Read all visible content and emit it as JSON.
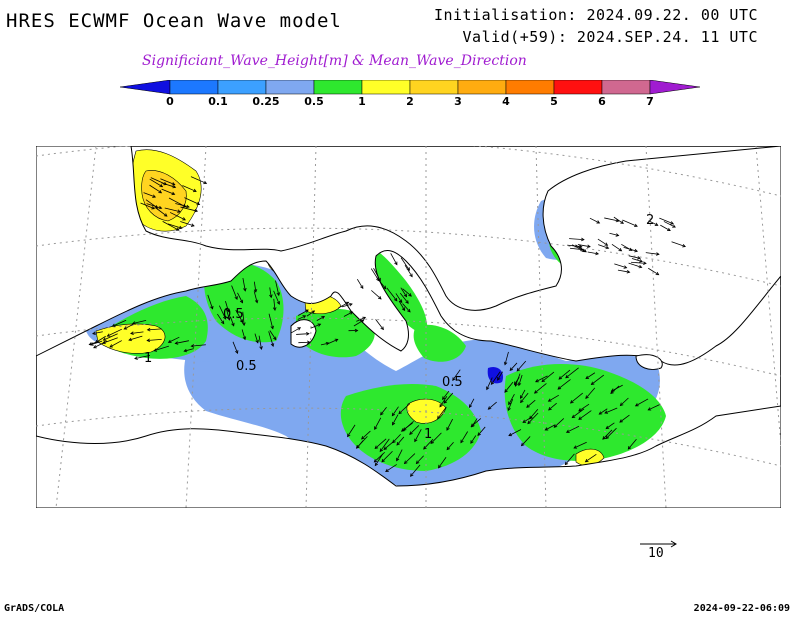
{
  "header": {
    "title": "HRES ECWMF Ocean Wave model",
    "init": "Initialisation: 2024.09.22. 00 UTC",
    "valid": "Valid(+59): 2024.SEP.24. 11 UTC",
    "subtitle": "Significiant_Wave_Height[m] & Mean_Wave_Direction"
  },
  "colorbar": {
    "labels": [
      "0",
      "0.1",
      "0.25",
      "0.5",
      "1",
      "2",
      "3",
      "4",
      "5",
      "6",
      "7"
    ],
    "colors": [
      "#1010e0",
      "#1c78ff",
      "#3ca0ff",
      "#7fa8f0",
      "#2ee82e",
      "#ffff28",
      "#ffd420",
      "#ffac10",
      "#ff7c00",
      "#ff1010",
      "#d06890",
      "#a01cd0"
    ]
  },
  "map": {
    "contour_labels": [
      "0.5",
      "1",
      "0.5",
      "0.5",
      "1",
      "2"
    ],
    "colors": {
      "land": "#ffffff",
      "low": "#7fa8f0",
      "mid": "#2ee82e",
      "high": "#ffff28",
      "higher": "#ffd420",
      "deep": "#1c78ff",
      "vdeep": "#1010e0"
    }
  },
  "scale_vector": {
    "label": "10"
  },
  "footer": {
    "left": "GrADS/COLA",
    "right": "2024-09-22-06:09"
  }
}
